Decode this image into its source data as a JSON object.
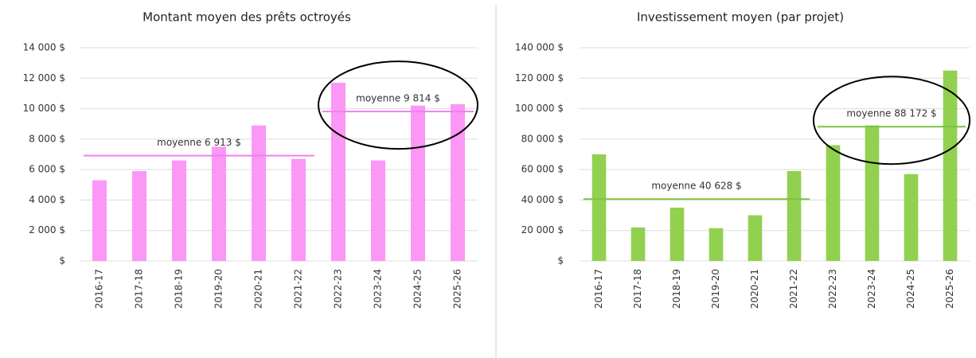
{
  "chart_data": [
    {
      "type": "bar",
      "title": "Montant moyen des prêts octroyés",
      "categories": [
        "2016-17",
        "2017-18",
        "2018-19",
        "2019-20",
        "2020-21",
        "2021-22",
        "2022-23",
        "2023-24",
        "2024-25",
        "2025-26"
      ],
      "values": [
        5300,
        5900,
        6600,
        7500,
        8900,
        6700,
        11700,
        6600,
        10200,
        10300
      ],
      "color": "#fb97f5",
      "ylim": [
        0,
        14000
      ],
      "yticks": [
        {
          "value": 0,
          "label": "$"
        },
        {
          "value": 2000,
          "label": "2 000 $"
        },
        {
          "value": 4000,
          "label": "4 000 $"
        },
        {
          "value": 6000,
          "label": "6 000 $"
        },
        {
          "value": 8000,
          "label": "8 000 $"
        },
        {
          "value": 10000,
          "label": "10 000 $"
        },
        {
          "value": 12000,
          "label": "12 000 $"
        },
        {
          "value": 14000,
          "label": "14 000 $"
        }
      ],
      "grid": true,
      "averages": [
        {
          "label": "moyenne 6 913 $",
          "value": 6913,
          "from": "2016-17",
          "to": "2021-22",
          "color": "#f07ff0"
        },
        {
          "label": "moyenne 9 814 $",
          "value": 9814,
          "from": "2022-23",
          "to": "2025-26",
          "color": "#f07ff0"
        }
      ]
    },
    {
      "type": "bar",
      "title": "Investissement moyen (par projet)",
      "categories": [
        "2016-17",
        "2017-18",
        "2018-19",
        "2019-20",
        "2020-21",
        "2021-22",
        "2022-23",
        "2023-24",
        "2024-25",
        "2025-26"
      ],
      "values": [
        70000,
        22000,
        35000,
        21500,
        30000,
        59000,
        76000,
        89000,
        57000,
        125000
      ],
      "color": "#92d050",
      "ylim": [
        0,
        140000
      ],
      "yticks": [
        {
          "value": 0,
          "label": "$"
        },
        {
          "value": 20000,
          "label": "20 000 $"
        },
        {
          "value": 40000,
          "label": "40 000 $"
        },
        {
          "value": 60000,
          "label": "60 000 $"
        },
        {
          "value": 80000,
          "label": "80 000 $"
        },
        {
          "value": 100000,
          "label": "100 000 $"
        },
        {
          "value": 120000,
          "label": "120 000 $"
        },
        {
          "value": 140000,
          "label": "140 000 $"
        }
      ],
      "grid": true,
      "averages": [
        {
          "label": "moyenne 40 628 $",
          "value": 40628,
          "from": "2016-17",
          "to": "2021-22",
          "color": "#7cc242"
        },
        {
          "label": "moyenne 88 172 $",
          "value": 88172,
          "from": "2022-23",
          "to": "2025-26",
          "color": "#7cc242"
        }
      ]
    }
  ]
}
